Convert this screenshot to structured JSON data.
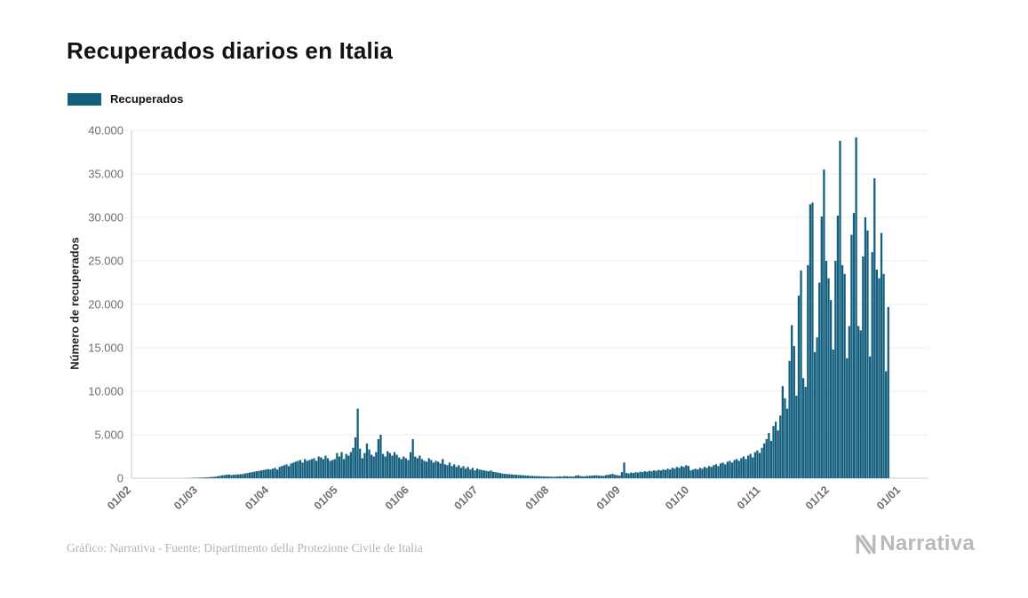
{
  "header": {
    "title": "Recuperados diarios en Italia"
  },
  "legend": {
    "label": "Recuperados"
  },
  "footer": {
    "credit": "Gráfico: Narrativa - Fuente: Dipartimento della Protezione Civile de Italia",
    "brand": "Narrativa"
  },
  "colors": {
    "bar": "#155f7e",
    "grid": "#ededed",
    "axis": "#c8c8c8",
    "tick_text": "#6e6e6e"
  },
  "chart_data": {
    "type": "bar",
    "title": "Recuperados diarios en Italia",
    "xlabel": "",
    "ylabel": "Número de recuperados",
    "legend": "Recuperados",
    "legend_position": "top-left",
    "grid": true,
    "bar_color": "#155f7e",
    "ylim": [
      0,
      40000
    ],
    "ytick_values": [
      0,
      5000,
      10000,
      15000,
      20000,
      25000,
      30000,
      35000,
      40000
    ],
    "ytick_labels": [
      "0",
      "5.000",
      "10.000",
      "15.000",
      "20.000",
      "25.000",
      "30.000",
      "35.000",
      "40.000"
    ],
    "x_unit": "day",
    "x_start": "01/02",
    "domain_days": 347,
    "xticks": [
      {
        "label": "01/02",
        "day": 0
      },
      {
        "label": "01/03",
        "day": 29
      },
      {
        "label": "01/04",
        "day": 60
      },
      {
        "label": "01/05",
        "day": 90
      },
      {
        "label": "01/06",
        "day": 121
      },
      {
        "label": "01/07",
        "day": 151
      },
      {
        "label": "01/08",
        "day": 182
      },
      {
        "label": "01/09",
        "day": 213
      },
      {
        "label": "01/10",
        "day": 243
      },
      {
        "label": "01/11",
        "day": 274
      },
      {
        "label": "01/12",
        "day": 304
      },
      {
        "label": "01/01",
        "day": 335
      }
    ],
    "values": [
      0,
      0,
      0,
      0,
      0,
      0,
      0,
      0,
      0,
      0,
      0,
      0,
      0,
      0,
      0,
      0,
      0,
      0,
      0,
      0,
      0,
      1,
      1,
      2,
      3,
      5,
      40,
      45,
      50,
      60,
      70,
      80,
      100,
      115,
      130,
      160,
      180,
      230,
      280,
      330,
      365,
      410,
      430,
      370,
      400,
      420,
      440,
      460,
      480,
      550,
      600,
      650,
      700,
      750,
      800,
      850,
      900,
      950,
      1000,
      1050,
      1000,
      1100,
      1200,
      1000,
      1300,
      1400,
      1500,
      1600,
      1400,
      1700,
      1800,
      1900,
      2000,
      2100,
      1800,
      2200,
      2000,
      2100,
      2200,
      2300,
      2000,
      2500,
      2400,
      2200,
      2600,
      2300,
      2000,
      2100,
      2200,
      2900,
      2500,
      3000,
      2200,
      2800,
      2600,
      3000,
      3500,
      4700,
      8000,
      3400,
      2300,
      2900,
      4000,
      3300,
      2700,
      2500,
      3000,
      4500,
      5000,
      2800,
      2500,
      3100,
      2900,
      2600,
      3000,
      2700,
      2400,
      2200,
      2500,
      2300,
      2100,
      3000,
      4500,
      2500,
      2300,
      2600,
      2200,
      2000,
      1900,
      2300,
      2100,
      1800,
      2000,
      1900,
      1700,
      2200,
      1600,
      1500,
      1800,
      1400,
      1600,
      1300,
      1500,
      1200,
      1400,
      1100,
      1300,
      1000,
      1200,
      900,
      1100,
      1000,
      950,
      900,
      850,
      800,
      900,
      750,
      700,
      650,
      600,
      550,
      500,
      480,
      460,
      440,
      420,
      400,
      380,
      360,
      340,
      320,
      300,
      280,
      260,
      250,
      240,
      230,
      220,
      210,
      200,
      190,
      180,
      170,
      160,
      200,
      220,
      180,
      250,
      230,
      210,
      190,
      200,
      300,
      350,
      250,
      220,
      240,
      260,
      280,
      300,
      320,
      340,
      300,
      280,
      260,
      350,
      400,
      450,
      500,
      400,
      350,
      300,
      700,
      1800,
      600,
      550,
      650,
      600,
      700,
      650,
      750,
      700,
      800,
      750,
      850,
      800,
      900,
      850,
      950,
      900,
      1000,
      950,
      1100,
      1000,
      1200,
      1100,
      1300,
      1200,
      1400,
      1300,
      1500,
      1400,
      900,
      1000,
      1100,
      1000,
      1200,
      1100,
      1300,
      1200,
      1400,
      1300,
      1500,
      1600,
      1400,
      1700,
      1800,
      1600,
      1900,
      2000,
      1800,
      2100,
      2200,
      2000,
      2300,
      2500,
      2200,
      2600,
      2800,
      2400,
      3000,
      3200,
      2900,
      3500,
      4000,
      4500,
      5200,
      4300,
      6000,
      6500,
      5500,
      7200,
      10600,
      9200,
      8000,
      13500,
      17600,
      15200,
      9500,
      21000,
      23900,
      11500,
      10500,
      24500,
      31500,
      31700,
      14500,
      16200,
      22500,
      30100,
      35500,
      25000,
      23000,
      20500,
      14800,
      25000,
      30200,
      38800,
      24500,
      23500,
      13800,
      17500,
      28000,
      30500,
      39200,
      17500,
      17000,
      25500,
      30000,
      28500,
      14000,
      26000,
      34500,
      24000,
      23000,
      28200,
      23500,
      12300,
      19700
    ]
  }
}
